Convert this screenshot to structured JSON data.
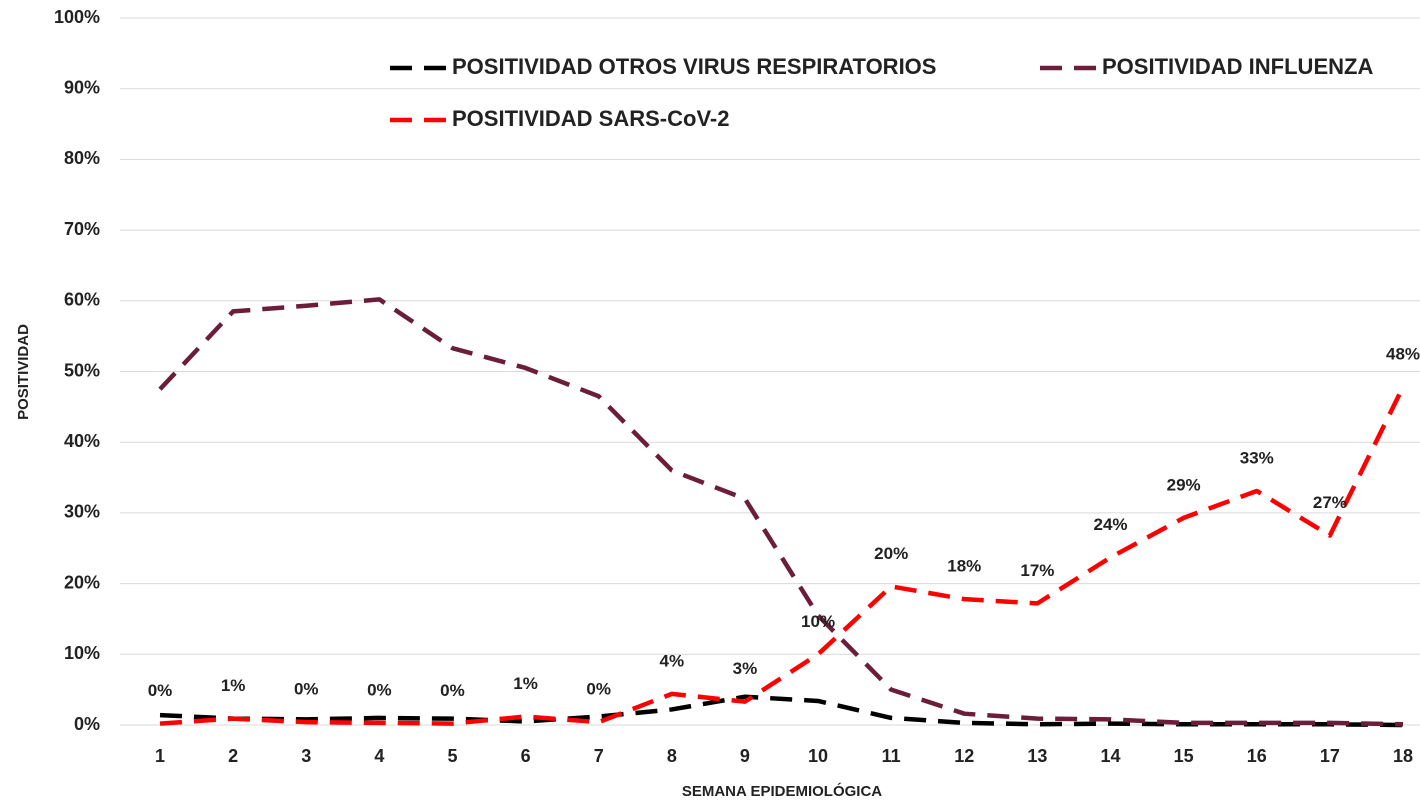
{
  "chart_data": {
    "type": "line",
    "y_label": "POSITIVIDAD",
    "x_label": "SEMANA EPIDEMIOLÓGICA",
    "categories": [
      "1",
      "2",
      "3",
      "4",
      "5",
      "6",
      "7",
      "8",
      "9",
      "10",
      "11",
      "12",
      "13",
      "14",
      "15",
      "16",
      "17",
      "18"
    ],
    "series": [
      {
        "name": "POSITIVIDAD OTROS VIRUS RESPIRATORIOS",
        "color": "#000000",
        "values": [
          1.4,
          0.9,
          0.8,
          1.0,
          0.9,
          0.5,
          1.2,
          2.2,
          4.0,
          3.4,
          1.0,
          0.3,
          0.1,
          0.2,
          0.1,
          0.1,
          0.1,
          0.0
        ]
      },
      {
        "name": "POSITIVIDAD INFLUENZA",
        "color": "#6b1d3a",
        "values": [
          47.5,
          58.5,
          59.3,
          60.2,
          53.3,
          50.5,
          46.5,
          36.0,
          32.0,
          15.5,
          5.0,
          1.6,
          0.9,
          0.8,
          0.3,
          0.3,
          0.3,
          0.1
        ]
      },
      {
        "name": "POSITIVIDAD SARS-CoV-2",
        "color": "#ff0000",
        "values": [
          0.2,
          0.9,
          0.4,
          0.3,
          0.2,
          1.2,
          0.4,
          4.4,
          3.3,
          10.0,
          19.6,
          17.8,
          17.2,
          23.7,
          29.3,
          33.1,
          26.8,
          47.8
        ],
        "value_labels": [
          "0%",
          "1%",
          "0%",
          "0%",
          "0%",
          "1%",
          "0%",
          "4%",
          "3%",
          "10%",
          "20%",
          "18%",
          "17%",
          "24%",
          "29%",
          "33%",
          "27%",
          "48%"
        ]
      }
    ],
    "ylim": [
      0,
      100
    ],
    "yticks": [
      {
        "value": 0,
        "label": "0%"
      },
      {
        "value": 10,
        "label": "10%"
      },
      {
        "value": 20,
        "label": "20%"
      },
      {
        "value": 30,
        "label": "30%"
      },
      {
        "value": 40,
        "label": "40%"
      },
      {
        "value": 50,
        "label": "50%"
      },
      {
        "value": 60,
        "label": "60%"
      },
      {
        "value": 70,
        "label": "70%"
      },
      {
        "value": 80,
        "label": "80%"
      },
      {
        "value": 90,
        "label": "90%"
      },
      {
        "value": 100,
        "label": "100%"
      }
    ],
    "grid": true
  }
}
